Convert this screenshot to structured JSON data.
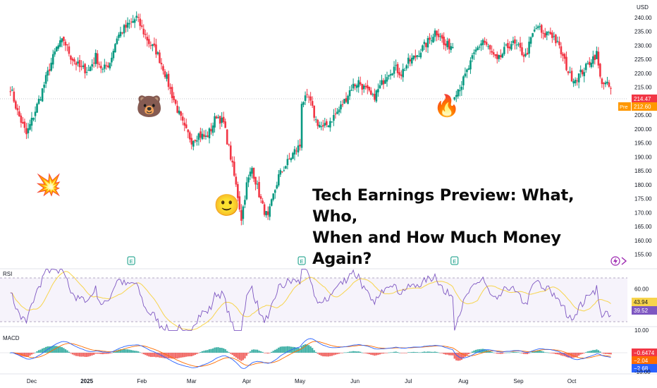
{
  "chart_data": {
    "type": "candlestick",
    "currency": "USD",
    "headline_lines": [
      "Tech Earnings Preview: What, Who,",
      "When and How Much Money Again?"
    ],
    "price_axis": {
      "ylim": [
        152,
        246
      ],
      "ticks": [
        240,
        235,
        230,
        225,
        220,
        215,
        210,
        205,
        200,
        195,
        190,
        185,
        180,
        175,
        170,
        165,
        160,
        155
      ],
      "tick_labels": [
        "240.00",
        "235.00",
        "230.00",
        "225.00",
        "220.00",
        "215.00",
        "210.00",
        "205.00",
        "200.00",
        "195.00",
        "190.00",
        "185.00",
        "180.00",
        "175.00",
        "170.00",
        "165.00",
        "160.00",
        "155.00"
      ]
    },
    "time_axis": {
      "labels": [
        "Dec",
        "2025",
        "Feb",
        "Mar",
        "Apr",
        "May",
        "Jun",
        "Jul",
        "Aug",
        "Sep",
        "Oct"
      ],
      "label_days": [
        0,
        31,
        62,
        90,
        121,
        151,
        182,
        212,
        243,
        274,
        304
      ]
    },
    "last_price": {
      "value": 214.47,
      "label": "214.47",
      "color": "#f23645"
    },
    "premarket": {
      "tag": "Pre",
      "value": 212.6,
      "label": "212.60",
      "color": "#ff9800"
    },
    "earnings_markers": [
      {
        "day": 56,
        "label": "E"
      },
      {
        "day": 152,
        "label": "E"
      },
      {
        "day": 238,
        "label": "E"
      }
    ],
    "colors": {
      "up": "#089981",
      "down": "#f23645",
      "rsi": "#7e57c2",
      "rsi_ma": "#f7d44c",
      "macd": "#2962ff",
      "signal": "#ff6d00"
    },
    "price_path": [
      {
        "d": -12,
        "v": 215
      },
      {
        "d": -8,
        "v": 206
      },
      {
        "d": -3,
        "v": 198
      },
      {
        "d": 0,
        "v": 203
      },
      {
        "d": 5,
        "v": 212
      },
      {
        "d": 10,
        "v": 222
      },
      {
        "d": 14,
        "v": 229
      },
      {
        "d": 18,
        "v": 232
      },
      {
        "d": 22,
        "v": 226
      },
      {
        "d": 27,
        "v": 222
      },
      {
        "d": 32,
        "v": 221
      },
      {
        "d": 36,
        "v": 226
      },
      {
        "d": 40,
        "v": 221
      },
      {
        "d": 44,
        "v": 224
      },
      {
        "d": 48,
        "v": 233
      },
      {
        "d": 52,
        "v": 236
      },
      {
        "d": 56,
        "v": 238
      },
      {
        "d": 59,
        "v": 240
      },
      {
        "d": 62,
        "v": 236
      },
      {
        "d": 66,
        "v": 231
      },
      {
        "d": 70,
        "v": 228
      },
      {
        "d": 74,
        "v": 222
      },
      {
        "d": 78,
        "v": 214
      },
      {
        "d": 82,
        "v": 207
      },
      {
        "d": 86,
        "v": 200
      },
      {
        "d": 90,
        "v": 196
      },
      {
        "d": 94,
        "v": 198
      },
      {
        "d": 98,
        "v": 197
      },
      {
        "d": 101,
        "v": 200
      },
      {
        "d": 104,
        "v": 205
      },
      {
        "d": 108,
        "v": 202
      },
      {
        "d": 112,
        "v": 190
      },
      {
        "d": 116,
        "v": 176
      },
      {
        "d": 118,
        "v": 168
      },
      {
        "d": 121,
        "v": 180
      },
      {
        "d": 124,
        "v": 186
      },
      {
        "d": 127,
        "v": 179
      },
      {
        "d": 130,
        "v": 172
      },
      {
        "d": 133,
        "v": 168
      },
      {
        "d": 136,
        "v": 176
      },
      {
        "d": 139,
        "v": 183
      },
      {
        "d": 142,
        "v": 186
      },
      {
        "d": 145,
        "v": 189
      },
      {
        "d": 148,
        "v": 192
      },
      {
        "d": 151,
        "v": 194
      },
      {
        "d": 152,
        "v": 210
      },
      {
        "d": 156,
        "v": 211
      },
      {
        "d": 160,
        "v": 203
      },
      {
        "d": 164,
        "v": 200
      },
      {
        "d": 168,
        "v": 203
      },
      {
        "d": 172,
        "v": 206
      },
      {
        "d": 176,
        "v": 210
      },
      {
        "d": 180,
        "v": 215
      },
      {
        "d": 184,
        "v": 217
      },
      {
        "d": 188,
        "v": 214
      },
      {
        "d": 192,
        "v": 211
      },
      {
        "d": 196,
        "v": 215
      },
      {
        "d": 200,
        "v": 220
      },
      {
        "d": 204,
        "v": 222
      },
      {
        "d": 208,
        "v": 220
      },
      {
        "d": 212,
        "v": 224
      },
      {
        "d": 216,
        "v": 226
      },
      {
        "d": 220,
        "v": 229
      },
      {
        "d": 224,
        "v": 232
      },
      {
        "d": 227,
        "v": 235
      },
      {
        "d": 230,
        "v": 234
      },
      {
        "d": 232,
        "v": 230
      },
      {
        "d": 238,
        "v": 213
      },
      {
        "d": 242,
        "v": 216
      },
      {
        "d": 246,
        "v": 222
      },
      {
        "d": 250,
        "v": 228
      },
      {
        "d": 254,
        "v": 232
      },
      {
        "d": 258,
        "v": 228
      },
      {
        "d": 262,
        "v": 224
      },
      {
        "d": 266,
        "v": 228
      },
      {
        "d": 270,
        "v": 231
      },
      {
        "d": 274,
        "v": 229
      },
      {
        "d": 278,
        "v": 226
      },
      {
        "d": 282,
        "v": 234
      },
      {
        "d": 285,
        "v": 237
      },
      {
        "d": 288,
        "v": 233
      },
      {
        "d": 291,
        "v": 235
      },
      {
        "d": 294,
        "v": 233
      },
      {
        "d": 297,
        "v": 229
      },
      {
        "d": 300,
        "v": 224
      },
      {
        "d": 303,
        "v": 219
      },
      {
        "d": 306,
        "v": 218
      },
      {
        "d": 309,
        "v": 220
      },
      {
        "d": 312,
        "v": 222
      },
      {
        "d": 315,
        "v": 225
      },
      {
        "d": 318,
        "v": 227
      },
      {
        "d": 320,
        "v": 218
      },
      {
        "d": 323,
        "v": 216
      },
      {
        "d": 326,
        "v": 214.5
      }
    ],
    "rsi": {
      "label": "RSI",
      "value_labels": [
        {
          "label": "43.94",
          "value": 43.94,
          "color": "#f7d44c"
        },
        {
          "label": "39.52",
          "value": 39.52,
          "color": "#7e57c2"
        }
      ],
      "tick": {
        "value": 60,
        "label": "60.00"
      }
    },
    "macd": {
      "label": "MACD",
      "tick": {
        "value": 10,
        "label": "10.00"
      },
      "tick_bottom_label": "-10.00",
      "value_labels": [
        {
          "label": "−0.6474",
          "color": "#f23645"
        },
        {
          "label": "−2.04",
          "color": "#ff6d00"
        },
        {
          "label": "−2.68",
          "color": "#2962ff"
        }
      ]
    }
  },
  "stickers": {
    "explosion": "💥",
    "bear": "🐻",
    "smile": "🙂",
    "fire": "🔥"
  }
}
